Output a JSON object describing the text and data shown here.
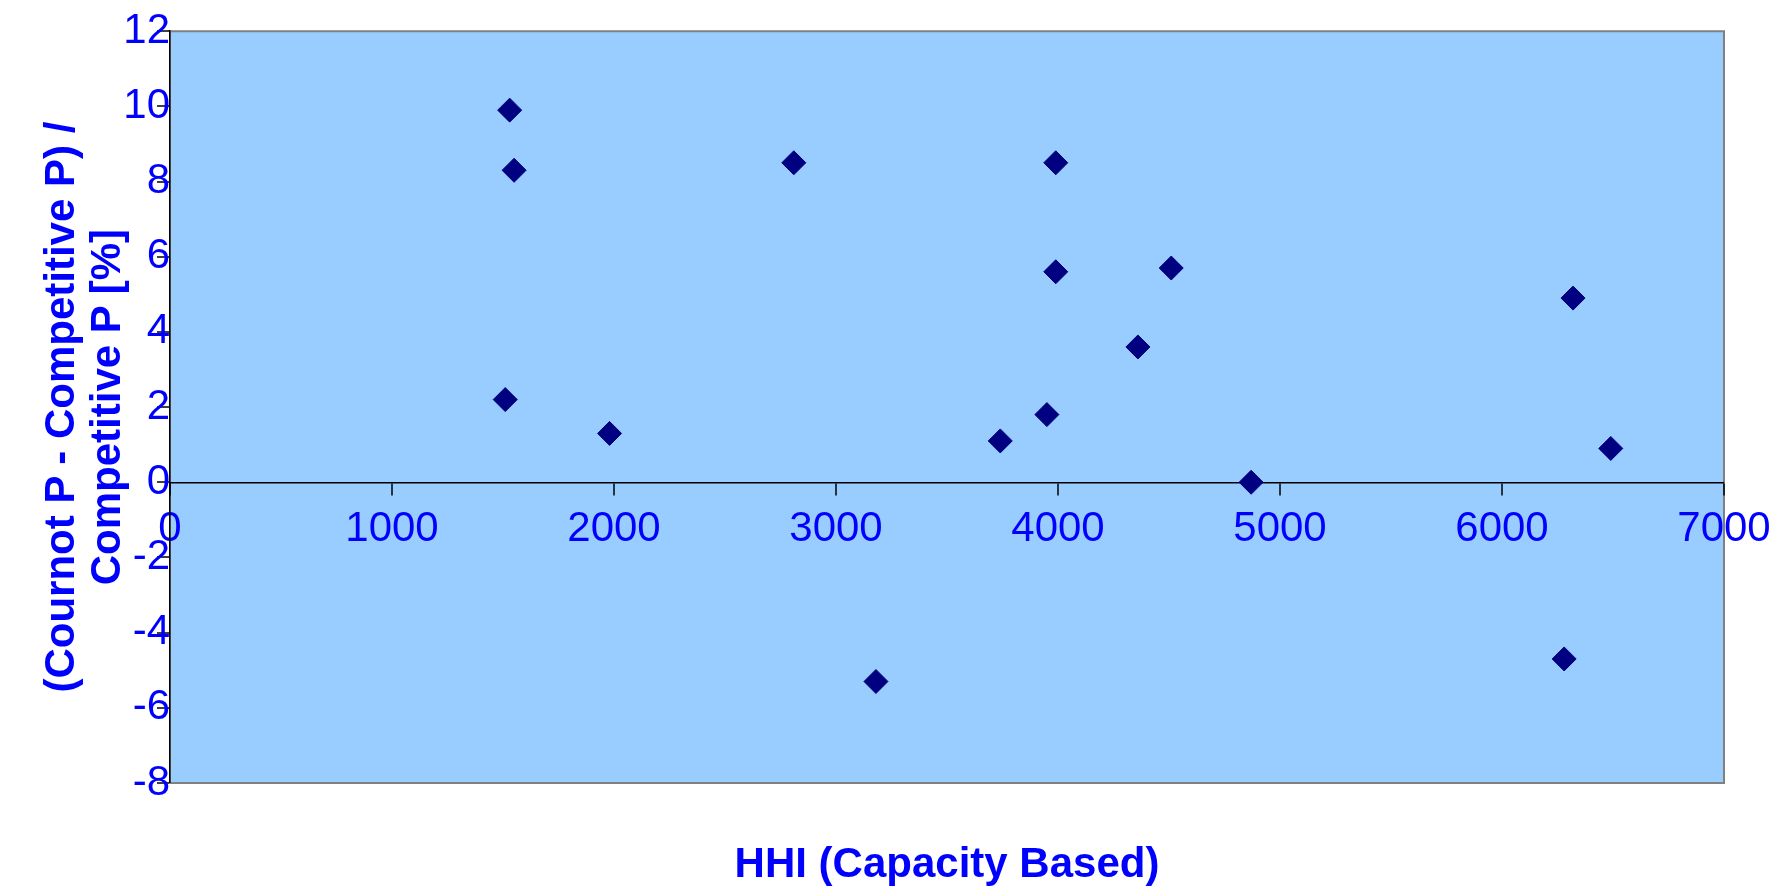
{
  "chart_data": {
    "type": "scatter",
    "xlabel": "HHI (Capacity Based)",
    "ylabel": "(Cournot P - Competitive P) / Competitive P [%]",
    "xlim": [
      0,
      7000
    ],
    "xticks": [
      0,
      1000,
      2000,
      3000,
      4000,
      5000,
      6000,
      7000
    ],
    "ylim": [
      -8,
      12
    ],
    "yticks": [
      -8,
      -6,
      -4,
      -2,
      0,
      2,
      4,
      6,
      8,
      10,
      12
    ],
    "grid": false,
    "legend": false,
    "marker": "diamond",
    "series": [
      {
        "color": "#000080",
        "x": [
          1530,
          1550,
          1510,
          1980,
          2810,
          3180,
          3740,
          3950,
          3990,
          3990,
          4360,
          4510,
          4870,
          6320,
          6280,
          6490
        ],
        "values": [
          9.9,
          8.3,
          2.2,
          1.3,
          8.5,
          -5.3,
          1.1,
          1.8,
          8.5,
          5.6,
          3.6,
          5.7,
          0,
          4.9,
          -4.7,
          0.9
        ]
      }
    ]
  }
}
